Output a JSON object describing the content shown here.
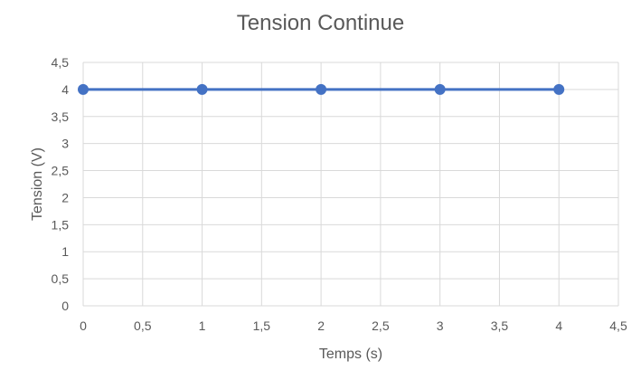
{
  "chart_data": {
    "type": "scatter",
    "title": "Tension Continue",
    "xlabel": "Temps (s)",
    "ylabel": "Tension (V)",
    "xlim": [
      0,
      4.5
    ],
    "ylim": [
      0,
      4.5
    ],
    "x_ticks": [
      0,
      0.5,
      1,
      1.5,
      2,
      2.5,
      3,
      3.5,
      4,
      4.5
    ],
    "x_tick_labels": [
      "0",
      "0,5",
      "1",
      "1,5",
      "2",
      "2,5",
      "3",
      "3,5",
      "4",
      "4,5"
    ],
    "y_ticks": [
      0,
      0.5,
      1,
      1.5,
      2,
      2.5,
      3,
      3.5,
      4,
      4.5
    ],
    "y_tick_labels": [
      "0",
      "0,5",
      "1",
      "1,5",
      "2",
      "2,5",
      "3",
      "3,5",
      "4",
      "4,5"
    ],
    "grid": true,
    "legend": "none",
    "series": [
      {
        "x": [
          0,
          1,
          2,
          3,
          4
        ],
        "y": [
          4,
          4,
          4,
          4,
          4
        ],
        "color": "#4472C4",
        "style": "line-with-markers"
      }
    ],
    "grid_color": "#D9D9D9",
    "text_color": "#595959"
  }
}
